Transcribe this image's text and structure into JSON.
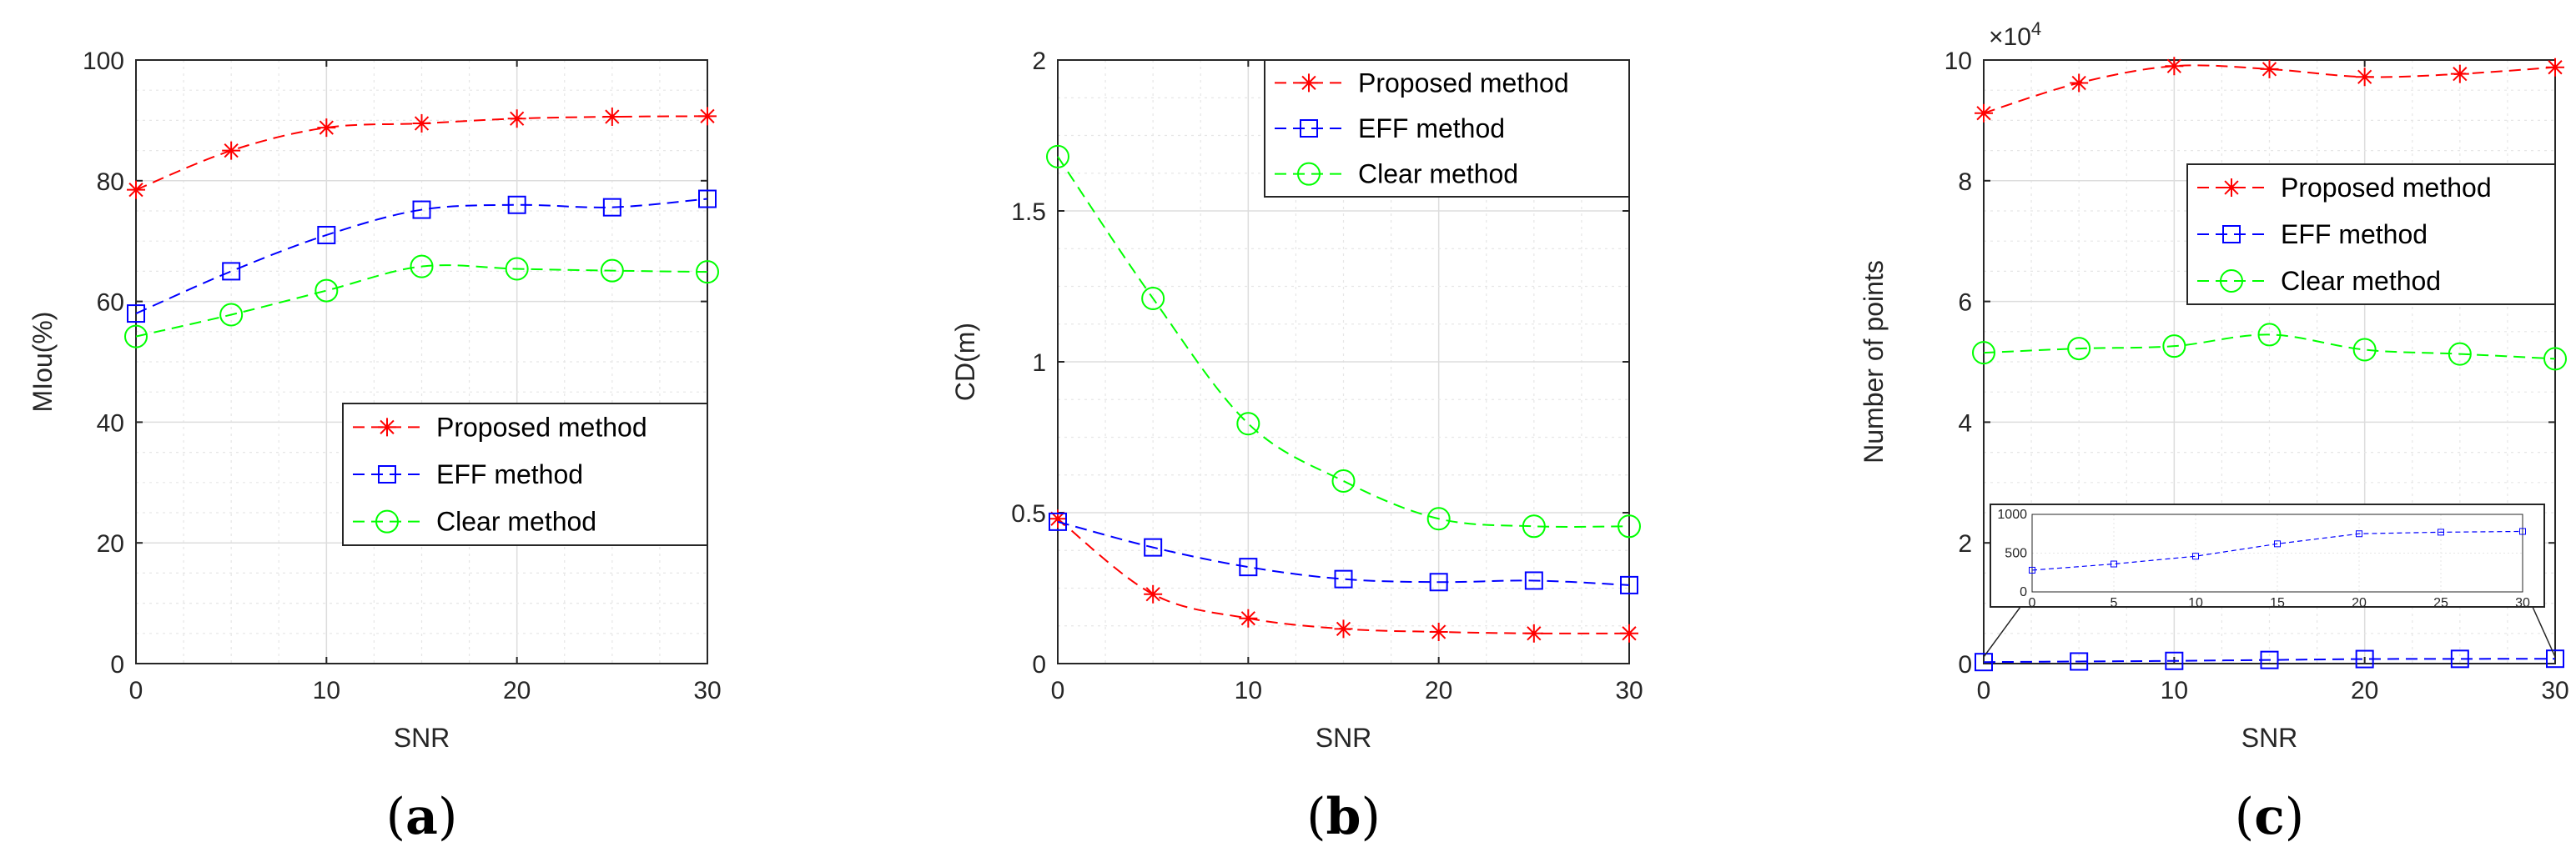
{
  "chart_data": [
    {
      "type": "line",
      "panel_label": "(a)",
      "panel_letter": "a",
      "xlabel": "SNR",
      "ylabel": "MIou(%)",
      "xlim": [
        0,
        30
      ],
      "ylim": [
        0,
        100
      ],
      "x_ticks": [
        0,
        10,
        20,
        30
      ],
      "y_ticks": [
        0,
        20,
        40,
        60,
        80,
        100
      ],
      "y_tick_labels": [
        "0",
        "20",
        "40",
        "60",
        "80",
        "100"
      ],
      "grid": true,
      "legend_position": "center-right",
      "x": [
        0,
        5,
        10,
        15,
        20,
        25,
        30
      ],
      "series": [
        {
          "name": "Proposed method",
          "color": "#ff0000",
          "marker": "asterisk",
          "values": [
            78.5,
            85,
            88.8,
            89.5,
            90.3,
            90.6,
            90.7
          ]
        },
        {
          "name": "EFF method",
          "color": "#0000ff",
          "marker": "square",
          "values": [
            58,
            65,
            71,
            75.2,
            76,
            75.6,
            77
          ]
        },
        {
          "name": "Clear method",
          "color": "#00ff00",
          "marker": "circle",
          "values": [
            54.2,
            57.8,
            61.8,
            65.8,
            65.4,
            65.1,
            64.9
          ]
        }
      ]
    },
    {
      "type": "line",
      "panel_label": "(b)",
      "panel_letter": "b",
      "xlabel": "SNR",
      "ylabel": "CD(m)",
      "xlim": [
        0,
        30
      ],
      "ylim": [
        0,
        2
      ],
      "x_ticks": [
        0,
        10,
        20,
        30
      ],
      "y_ticks": [
        0,
        0.5,
        1,
        1.5,
        2
      ],
      "y_tick_labels": [
        "0",
        "0.5",
        "1",
        "1.5",
        "2"
      ],
      "grid": true,
      "legend_position": "top-right",
      "x": [
        0,
        5,
        10,
        15,
        20,
        25,
        30
      ],
      "series": [
        {
          "name": "Proposed method",
          "color": "#ff0000",
          "marker": "asterisk",
          "values": [
            0.48,
            0.23,
            0.15,
            0.115,
            0.105,
            0.1,
            0.1
          ]
        },
        {
          "name": "EFF method",
          "color": "#0000ff",
          "marker": "square",
          "values": [
            0.47,
            0.385,
            0.32,
            0.28,
            0.27,
            0.275,
            0.26
          ]
        },
        {
          "name": "Clear method",
          "color": "#00ff00",
          "marker": "circle",
          "values": [
            1.68,
            1.21,
            0.795,
            0.605,
            0.48,
            0.455,
            0.455
          ]
        }
      ]
    },
    {
      "type": "line",
      "panel_label": "(c)",
      "panel_letter": "c",
      "xlabel": "SNR",
      "ylabel": "Number of points",
      "exponent_label": "×10",
      "exponent_power": "4",
      "xlim": [
        0,
        30
      ],
      "ylim": [
        0,
        10
      ],
      "x_ticks": [
        0,
        10,
        20,
        30
      ],
      "y_ticks": [
        0,
        2,
        4,
        6,
        8,
        10
      ],
      "y_tick_labels": [
        "0",
        "2",
        "4",
        "6",
        "8",
        "10"
      ],
      "grid": true,
      "legend_position": "top-right",
      "x": [
        0,
        5,
        10,
        15,
        20,
        25,
        30
      ],
      "series": [
        {
          "name": "Proposed method",
          "color": "#ff0000",
          "marker": "asterisk",
          "values": [
            9.12,
            9.62,
            9.9,
            9.85,
            9.72,
            9.77,
            9.88
          ]
        },
        {
          "name": "EFF method",
          "color": "#0000ff",
          "marker": "square",
          "values": [
            0.025,
            0.035,
            0.045,
            0.06,
            0.075,
            0.078,
            0.08
          ]
        },
        {
          "name": "Clear method",
          "color": "#00ff00",
          "marker": "circle",
          "values": [
            5.15,
            5.22,
            5.26,
            5.45,
            5.2,
            5.13,
            5.05
          ]
        }
      ],
      "inset": {
        "series_name": "EFF method",
        "color": "#0000ff",
        "xlim": [
          0,
          30
        ],
        "ylim": [
          0,
          1000
        ],
        "x_ticks": [
          0,
          5,
          10,
          15,
          20,
          25,
          30
        ],
        "y_ticks": [
          0,
          500,
          1000
        ],
        "x": [
          0,
          5,
          10,
          15,
          20,
          25,
          30
        ],
        "values": [
          280,
          360,
          460,
          620,
          750,
          770,
          780
        ]
      }
    }
  ]
}
